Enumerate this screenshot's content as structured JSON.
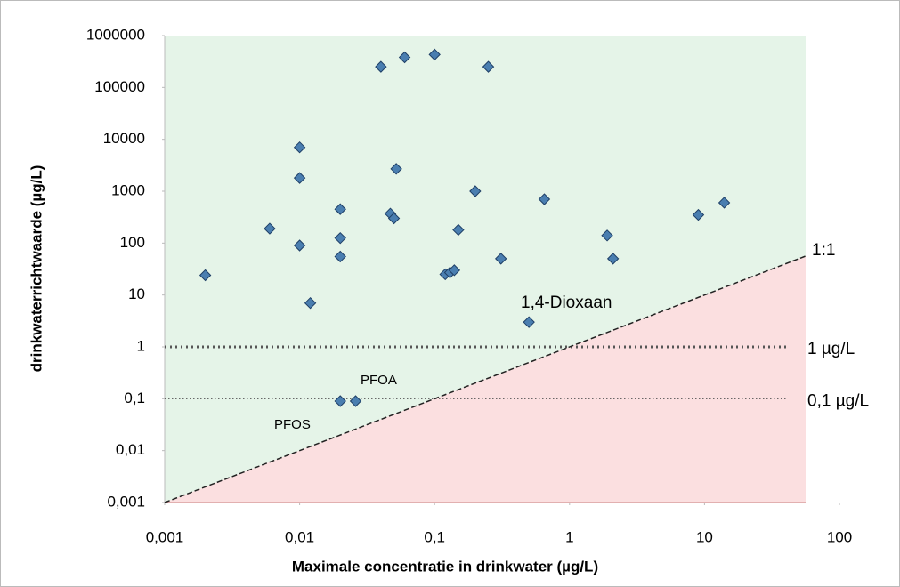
{
  "chart_data": {
    "type": "scatter",
    "x_label": "Maximale concentratie in  drinkwater (µg/L)",
    "y_label": "drinkwaterrichtwaarde (µg/L)",
    "log_x": true,
    "log_y": true,
    "xlim": [
      0.001,
      100
    ],
    "ylim": [
      0.001,
      1000000
    ],
    "xticks": [
      {
        "value": 0.001,
        "label": "0,001"
      },
      {
        "value": 0.01,
        "label": "0,01"
      },
      {
        "value": 0.1,
        "label": "0,1"
      },
      1,
      10,
      100
    ],
    "yticks": [
      {
        "value": 0.001,
        "label": "0,001"
      },
      {
        "value": 0.01,
        "label": "0,01"
      },
      {
        "value": 0.1,
        "label": "0,1"
      },
      1,
      10,
      100,
      1000,
      10000,
      100000,
      1000000
    ],
    "color": "#4a7eb0",
    "x": [
      0.002,
      0.006,
      0.01,
      0.01,
      0.01,
      0.012,
      0.02,
      0.026,
      0.02,
      0.02,
      0.02,
      0.04,
      0.06,
      0.1,
      0.25,
      0.047,
      0.05,
      0.052,
      0.2,
      0.65,
      0.15,
      0.12,
      0.13,
      0.14,
      0.31,
      0.5,
      1.9,
      2.1,
      9,
      14
    ],
    "y": [
      24,
      190,
      7000,
      1800,
      90,
      7,
      0.09,
      0.09,
      450,
      125,
      55,
      250000,
      380000,
      430000,
      250000,
      370,
      300,
      2700,
      1000,
      700,
      180,
      25,
      27,
      30,
      50,
      3,
      140,
      50,
      350,
      600
    ],
    "reference_lines": [
      {
        "value": 1,
        "label": "1 µg/L"
      },
      {
        "value": 0.1,
        "label": "0,1 µg/L"
      }
    ],
    "identity_line_label": "1:1",
    "annotations": [
      "PFOS",
      "PFOA",
      "1,4-Dioxaan"
    ]
  }
}
